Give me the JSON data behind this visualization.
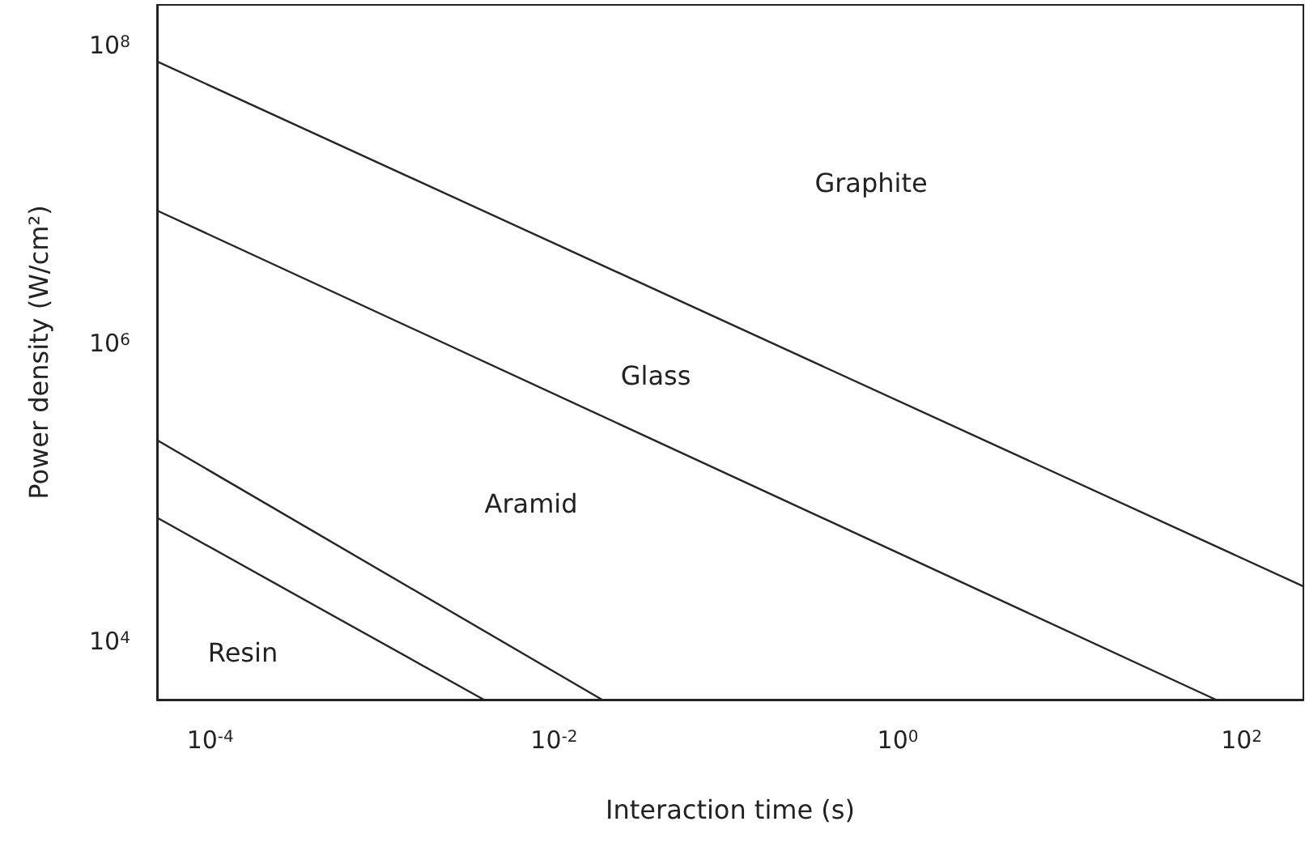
{
  "chart_data": {
    "type": "line",
    "xlabel": "Interaction time (s)",
    "ylabel": "Power density (W/cm²)",
    "log": "xy",
    "grid": false,
    "marker": "none",
    "line_style": "solid",
    "xlim": [
      4.9e-05,
      229
    ],
    "ylim": [
      4070,
      186000000
    ],
    "xticks": [
      {
        "value": 0.0001,
        "label": "10$^{-4}$"
      },
      {
        "value": 0.01,
        "label": "10$^{-2}$"
      },
      {
        "value": 1,
        "label": "10$^{0}$"
      },
      {
        "value": 100,
        "label": "10$^{2}$"
      }
    ],
    "yticks": [
      {
        "value": 10000,
        "label": "10$^{4}$"
      },
      {
        "value": 1000000,
        "label": "10$^{6}$"
      },
      {
        "value": 100000000,
        "label": "10$^{8}$"
      }
    ],
    "series": [
      {
        "color": "#262626",
        "x": [
          4.9e-05,
          229
        ],
        "values": [
          77600000,
          23400
        ]
      },
      {
        "color": "#262626",
        "x": [
          4.9e-05,
          70.8
        ],
        "values": [
          7760000,
          4070
        ]
      },
      {
        "color": "#262626",
        "x": [
          4.9e-05,
          0.019
        ],
        "values": [
          224000,
          4070
        ]
      },
      {
        "color": "#262626",
        "x": [
          4.9e-05,
          0.0039
        ],
        "values": [
          67600,
          4070
        ]
      }
    ],
    "annotations": [
      "Graphite",
      "Glass",
      "Aramid",
      "Resin"
    ]
  }
}
